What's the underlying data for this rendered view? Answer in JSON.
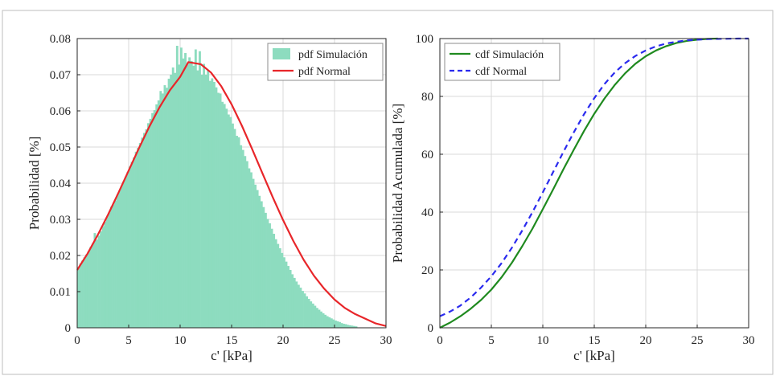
{
  "colors": {
    "hist_fill": "#8ddcbf",
    "pdf_normal": "#e8262a",
    "cdf_sim": "#1f8a1f",
    "cdf_normal": "#2a2aee",
    "grid": "#d9d9d9",
    "axis": "#262626"
  },
  "chart_data": [
    {
      "type": "bar",
      "subtype": "histogram_with_line",
      "xlabel": "c' [kPa]",
      "ylabel": "Probabilidad [%]",
      "xlim": [
        0,
        30
      ],
      "ylim": [
        0,
        0.08
      ],
      "xticks": [
        "0",
        "5",
        "10",
        "15",
        "20",
        "25",
        "30"
      ],
      "yticks": [
        "0",
        "0.01",
        "0.02",
        "0.03",
        "0.04",
        "0.05",
        "0.06",
        "0.07",
        "0.08"
      ],
      "grid": true,
      "legend_position": "top-right",
      "legend": [
        "pdf Simulación",
        "pdf Normal"
      ],
      "series": [
        {
          "name": "pdf Simulación",
          "style": "histogram",
          "bin_width": 0.2,
          "x": [
            0.1,
            0.3,
            0.5,
            0.7,
            0.9,
            1.1,
            1.3,
            1.5,
            1.7,
            1.9,
            2.1,
            2.3,
            2.5,
            2.7,
            2.9,
            3.1,
            3.3,
            3.5,
            3.7,
            3.9,
            4.1,
            4.3,
            4.5,
            4.7,
            4.9,
            5.1,
            5.3,
            5.5,
            5.7,
            5.9,
            6.1,
            6.3,
            6.5,
            6.7,
            6.9,
            7.1,
            7.3,
            7.5,
            7.7,
            7.9,
            8.1,
            8.3,
            8.5,
            8.7,
            8.9,
            9.1,
            9.3,
            9.5,
            9.7,
            9.9,
            10.1,
            10.3,
            10.5,
            10.7,
            10.9,
            11.1,
            11.3,
            11.5,
            11.7,
            11.9,
            12.1,
            12.3,
            12.5,
            12.7,
            12.9,
            13.1,
            13.3,
            13.5,
            13.7,
            13.9,
            14.1,
            14.3,
            14.5,
            14.7,
            14.9,
            15.1,
            15.3,
            15.5,
            15.7,
            15.9,
            16.1,
            16.3,
            16.5,
            16.7,
            16.9,
            17.1,
            17.3,
            17.5,
            17.7,
            17.9,
            18.1,
            18.3,
            18.5,
            18.7,
            18.9,
            19.1,
            19.3,
            19.5,
            19.7,
            19.9,
            20.1,
            20.3,
            20.5,
            20.7,
            20.9,
            21.1,
            21.3,
            21.5,
            21.7,
            21.9,
            22.1,
            22.3,
            22.5,
            22.7,
            22.9,
            23.1,
            23.3,
            23.5,
            23.7,
            23.9,
            24.1,
            24.3,
            24.5,
            24.7,
            24.9,
            25.1,
            25.3,
            25.5,
            25.7,
            25.9,
            26.1,
            26.3,
            26.5,
            26.7,
            26.9,
            27.1
          ],
          "values": [
            0.0165,
            0.0178,
            0.0186,
            0.0195,
            0.0203,
            0.0212,
            0.0224,
            0.0233,
            0.0262,
            0.0244,
            0.0255,
            0.0267,
            0.0281,
            0.0293,
            0.0306,
            0.0318,
            0.0335,
            0.0341,
            0.0352,
            0.0368,
            0.0378,
            0.0392,
            0.0405,
            0.0418,
            0.0431,
            0.0446,
            0.0459,
            0.0471,
            0.0487,
            0.0498,
            0.0511,
            0.0526,
            0.0539,
            0.0549,
            0.0566,
            0.0578,
            0.0594,
            0.0602,
            0.0618,
            0.0629,
            0.0655,
            0.0648,
            0.0671,
            0.0664,
            0.0689,
            0.07,
            0.072,
            0.0705,
            0.078,
            0.0728,
            0.0775,
            0.0745,
            0.076,
            0.0728,
            0.0748,
            0.0738,
            0.0725,
            0.077,
            0.0712,
            0.0765,
            0.07,
            0.073,
            0.07,
            0.0712,
            0.0683,
            0.069,
            0.068,
            0.0665,
            0.065,
            0.0648,
            0.0625,
            0.0619,
            0.0606,
            0.059,
            0.0583,
            0.0565,
            0.055,
            0.0531,
            0.0527,
            0.0505,
            0.0492,
            0.0475,
            0.0461,
            0.0441,
            0.043,
            0.0412,
            0.0396,
            0.0381,
            0.0365,
            0.035,
            0.0334,
            0.0318,
            0.0301,
            0.0289,
            0.0274,
            0.026,
            0.0245,
            0.0232,
            0.022,
            0.0207,
            0.0195,
            0.0183,
            0.0171,
            0.016,
            0.0148,
            0.0138,
            0.0128,
            0.0119,
            0.0111,
            0.0102,
            0.0095,
            0.0087,
            0.008,
            0.0073,
            0.0067,
            0.0061,
            0.0055,
            0.005,
            0.0045,
            0.004,
            0.0036,
            0.0032,
            0.0029,
            0.0026,
            0.0023,
            0.002,
            0.0018,
            0.0016,
            0.0013,
            0.0011,
            0.001,
            0.0008,
            0.0007,
            0.0006,
            0.0005,
            0.0004
          ]
        },
        {
          "name": "pdf Normal",
          "style": "line",
          "x": [
            0,
            1,
            2,
            3,
            4,
            5,
            6,
            7,
            8,
            9,
            10,
            10.8,
            12,
            13,
            14,
            15,
            16,
            17,
            18,
            19,
            20,
            21,
            22,
            23,
            24,
            25,
            26,
            27,
            28,
            29,
            30
          ],
          "values": [
            0.016,
            0.0205,
            0.0257,
            0.0313,
            0.0373,
            0.0435,
            0.0497,
            0.0556,
            0.061,
            0.0657,
            0.0694,
            0.0735,
            0.0729,
            0.0706,
            0.0668,
            0.0618,
            0.0559,
            0.0494,
            0.0427,
            0.0361,
            0.0298,
            0.024,
            0.0188,
            0.0144,
            0.0108,
            0.0078,
            0.0055,
            0.0038,
            0.0025,
            0.0012,
            0.0005
          ]
        }
      ]
    },
    {
      "type": "line",
      "xlabel": "c' [kPa]",
      "ylabel": "Probabilidad Acumulada [%]",
      "xlim": [
        0,
        30
      ],
      "ylim": [
        0,
        100
      ],
      "xticks": [
        "0",
        "5",
        "10",
        "15",
        "20",
        "25",
        "30"
      ],
      "yticks": [
        "0",
        "20",
        "40",
        "60",
        "80",
        "100"
      ],
      "grid": true,
      "legend_position": "top-left",
      "legend": [
        "cdf Simulación",
        "cdf Normal"
      ],
      "series": [
        {
          "name": "cdf Simulación",
          "style": "solid",
          "x": [
            0,
            1,
            2,
            3,
            4,
            5,
            6,
            7,
            8,
            9,
            10,
            11,
            12,
            13,
            14,
            15,
            16,
            17,
            18,
            19,
            20,
            21,
            22,
            23,
            24,
            25,
            26,
            27
          ],
          "values": [
            0,
            1.8,
            4.0,
            6.6,
            9.6,
            13.2,
            17.5,
            22.5,
            28.2,
            34.3,
            41.0,
            47.8,
            54.8,
            61.5,
            68.0,
            74.0,
            79.3,
            84.0,
            88.0,
            91.3,
            93.9,
            95.9,
            97.4,
            98.5,
            99.2,
            99.6,
            99.9,
            100
          ]
        },
        {
          "name": "cdf Normal",
          "style": "dashed",
          "x": [
            0,
            1,
            2,
            3,
            4,
            5,
            6,
            7,
            8,
            9,
            10,
            11,
            12,
            13,
            14,
            15,
            16,
            17,
            18,
            19,
            20,
            21,
            22,
            23,
            24,
            25,
            26,
            27,
            28,
            29,
            30
          ],
          "values": [
            4.0,
            5.6,
            7.7,
            10.5,
            13.9,
            17.8,
            22.4,
            27.7,
            33.6,
            40.0,
            46.8,
            53.8,
            60.8,
            67.5,
            73.8,
            79.4,
            84.3,
            88.3,
            91.5,
            94.0,
            95.9,
            97.3,
            98.3,
            98.9,
            99.4,
            99.6,
            99.8,
            99.9,
            99.95,
            100,
            100
          ]
        }
      ]
    }
  ]
}
